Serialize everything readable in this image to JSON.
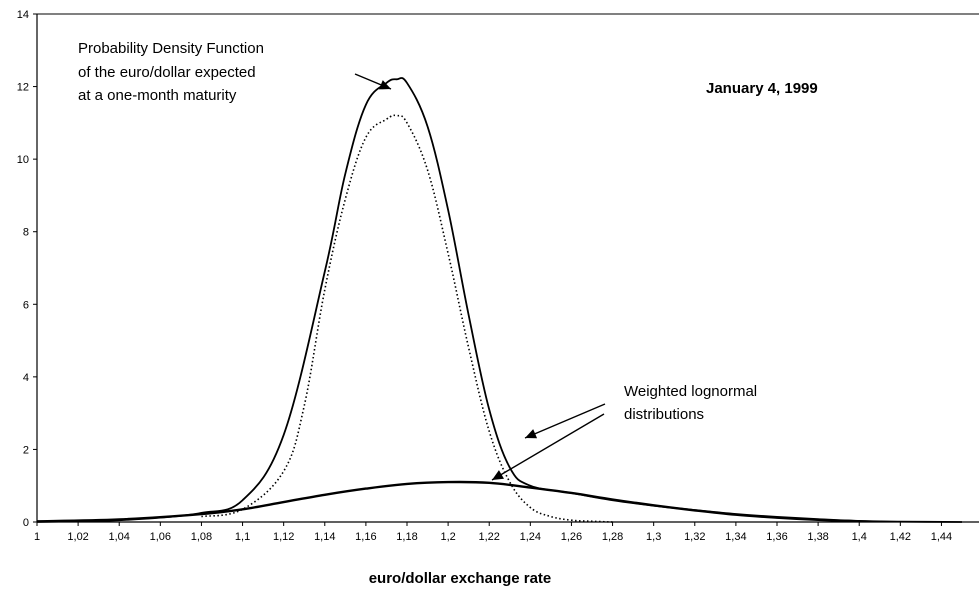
{
  "chart_data": {
    "type": "line",
    "xlabel": "euro/dollar exchange rate",
    "ylabel": "",
    "xlim": [
      1.0,
      1.45
    ],
    "ylim": [
      0,
      14
    ],
    "x_ticks": [
      "1",
      "1,02",
      "1,04",
      "1,06",
      "1,08",
      "1,1",
      "1,12",
      "1,14",
      "1,16",
      "1,18",
      "1,2",
      "1,22",
      "1,24",
      "1,26",
      "1,28",
      "1,3",
      "1,32",
      "1,34",
      "1,36",
      "1,38",
      "1,4",
      "1,42",
      "1,44"
    ],
    "y_ticks": [
      "0",
      "2",
      "4",
      "6",
      "8",
      "10",
      "12",
      "14"
    ],
    "grid": false,
    "series": [
      {
        "style": "solid",
        "x": [
          1.0,
          1.02,
          1.04,
          1.06,
          1.08,
          1.1,
          1.12,
          1.14,
          1.15,
          1.16,
          1.17,
          1.175,
          1.18,
          1.19,
          1.2,
          1.21,
          1.22,
          1.23,
          1.24,
          1.26,
          1.28,
          1.3,
          1.32,
          1.34,
          1.36,
          1.38,
          1.4,
          1.42,
          1.45
        ],
        "y": [
          0.0,
          0.02,
          0.05,
          0.12,
          0.25,
          0.6,
          2.4,
          6.9,
          9.6,
          11.5,
          12.1,
          12.2,
          12.1,
          10.9,
          8.6,
          5.7,
          3.1,
          1.5,
          1.0,
          0.8,
          0.6,
          0.45,
          0.33,
          0.22,
          0.14,
          0.08,
          0.03,
          0.01,
          0.0
        ]
      },
      {
        "style": "dotted",
        "x": [
          1.08,
          1.1,
          1.12,
          1.13,
          1.14,
          1.15,
          1.16,
          1.17,
          1.175,
          1.18,
          1.19,
          1.2,
          1.21,
          1.22,
          1.23,
          1.24,
          1.25,
          1.26,
          1.27,
          1.28
        ],
        "y": [
          0.15,
          0.35,
          1.4,
          3.2,
          6.4,
          8.9,
          10.6,
          11.1,
          11.2,
          11.0,
          9.7,
          7.4,
          4.8,
          2.5,
          1.1,
          0.4,
          0.15,
          0.05,
          0.02,
          0.0
        ]
      },
      {
        "style": "solid-thick",
        "x": [
          1.0,
          1.04,
          1.08,
          1.1,
          1.12,
          1.14,
          1.16,
          1.18,
          1.2,
          1.22,
          1.24,
          1.26,
          1.28,
          1.3,
          1.32,
          1.34,
          1.36,
          1.38,
          1.4
        ],
        "y": [
          0.02,
          0.07,
          0.22,
          0.35,
          0.55,
          0.75,
          0.92,
          1.05,
          1.1,
          1.08,
          0.95,
          0.8,
          0.62,
          0.46,
          0.32,
          0.2,
          0.12,
          0.06,
          0.02
        ]
      }
    ],
    "annotations": [
      {
        "lines": [
          "Probability Density Function",
          "of the euro/dollar expected",
          "at a one-month maturity"
        ]
      },
      {
        "lines": [
          "Weighted lognormal",
          "distributions"
        ]
      }
    ],
    "date_label": "January 4, 1999"
  }
}
